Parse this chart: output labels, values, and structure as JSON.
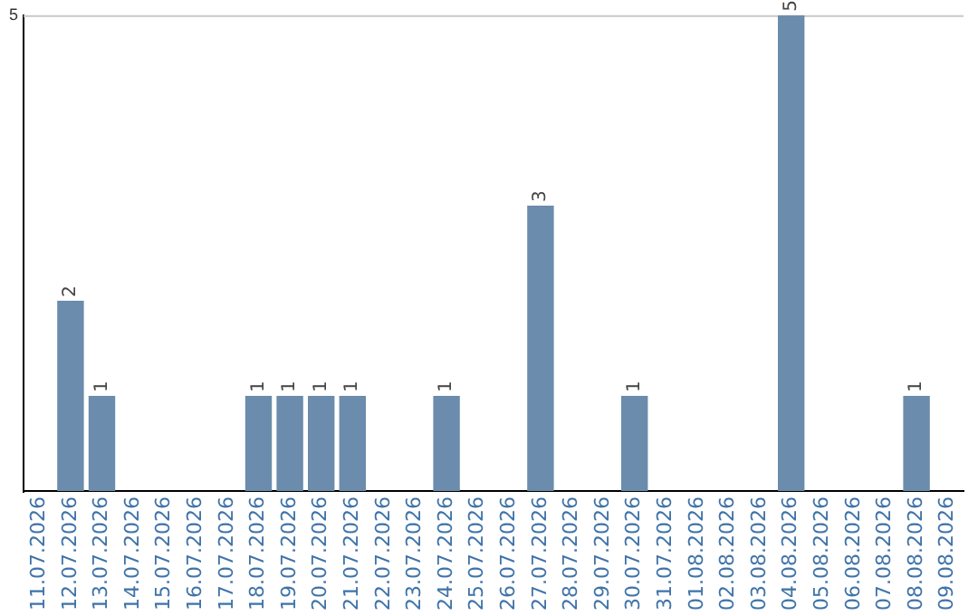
{
  "chart_data": {
    "type": "bar",
    "categories": [
      "11.07.2026",
      "12.07.2026",
      "13.07.2026",
      "14.07.2026",
      "15.07.2026",
      "16.07.2026",
      "17.07.2026",
      "18.07.2026",
      "19.07.2026",
      "20.07.2026",
      "21.07.2026",
      "22.07.2026",
      "23.07.2026",
      "24.07.2026",
      "25.07.2026",
      "26.07.2026",
      "27.07.2026",
      "28.07.2026",
      "29.07.2026",
      "30.07.2026",
      "31.07.2026",
      "01.08.2026",
      "02.08.2026",
      "03.08.2026",
      "04.08.2026",
      "05.08.2026",
      "06.08.2026",
      "07.08.2026",
      "08.08.2026",
      "09.08.2026"
    ],
    "values": [
      0,
      2,
      1,
      0,
      0,
      0,
      0,
      1,
      1,
      1,
      1,
      0,
      0,
      1,
      0,
      0,
      3,
      0,
      0,
      1,
      0,
      0,
      0,
      0,
      5,
      0,
      0,
      0,
      1,
      0
    ],
    "value_labels": [
      null,
      "2",
      "1",
      null,
      null,
      null,
      null,
      "1",
      "1",
      "1",
      "1",
      null,
      null,
      "1",
      null,
      null,
      "3",
      null,
      null,
      "1",
      null,
      null,
      null,
      null,
      "5",
      null,
      null,
      null,
      "1",
      null
    ],
    "color": "#6b8cac",
    "ylim": [
      0,
      5
    ],
    "yticks": [
      5
    ],
    "grid": false,
    "legend": false
  }
}
